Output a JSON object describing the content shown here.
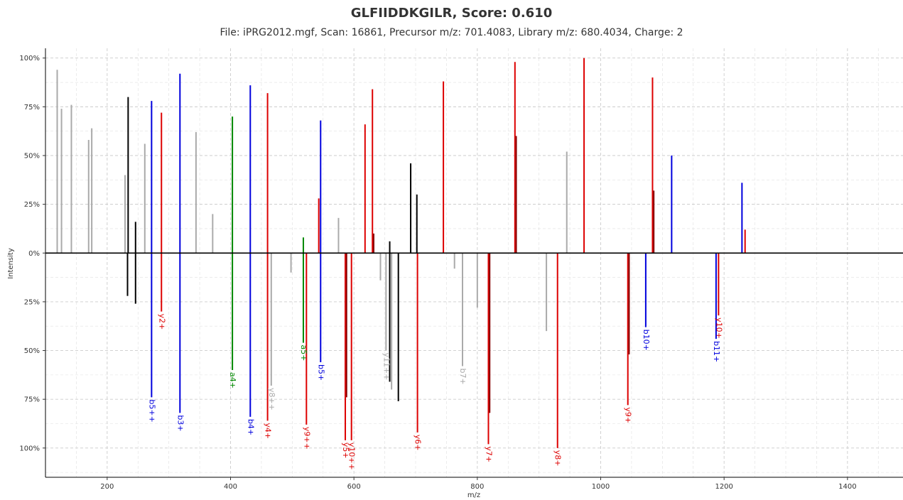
{
  "title": "GLFIIDDKGILR, Score: 0.610",
  "subtitle": "File: iPRG2012.mgf, Scan: 16861, Precursor m/z: 701.4083, Library m/z: 680.4034, Charge: 2",
  "chart_data": {
    "type": "bar",
    "xlabel": "m/z",
    "ylabel": "Intensity",
    "xlim": [
      100,
      1490
    ],
    "ylim": [
      -1.15,
      1.05
    ],
    "xticks": [
      200,
      400,
      600,
      800,
      1000,
      1200,
      1400
    ],
    "yticks": [
      {
        "value": 1.0,
        "label": "100%"
      },
      {
        "value": 0.75,
        "label": "75%"
      },
      {
        "value": 0.5,
        "label": "50%"
      },
      {
        "value": 0.25,
        "label": "25%"
      },
      {
        "value": 0.0,
        "label": "0%"
      },
      {
        "value": -0.25,
        "label": "25%"
      },
      {
        "value": -0.5,
        "label": "50%"
      },
      {
        "value": -0.75,
        "label": "75%"
      },
      {
        "value": -1.0,
        "label": "100%"
      }
    ],
    "grid": true,
    "colors": {
      "b": "#0000dd",
      "y": "#dd0000",
      "a": "#008800",
      "unassigned": "#aaaaaa",
      "black": "#000000",
      "darkred": "#880000"
    },
    "query_peaks": [
      {
        "mz": 119,
        "i": 0.94,
        "c": "unassigned"
      },
      {
        "mz": 126,
        "i": 0.74,
        "c": "unassigned"
      },
      {
        "mz": 142,
        "i": 0.76,
        "c": "unassigned"
      },
      {
        "mz": 170,
        "i": 0.58,
        "c": "unassigned"
      },
      {
        "mz": 175,
        "i": 0.64,
        "c": "unassigned"
      },
      {
        "mz": 229,
        "i": 0.4,
        "c": "unassigned"
      },
      {
        "mz": 234,
        "i": 0.8,
        "c": "black"
      },
      {
        "mz": 246,
        "i": 0.16,
        "c": "black"
      },
      {
        "mz": 261,
        "i": 0.56,
        "c": "unassigned"
      },
      {
        "mz": 272,
        "i": 0.78,
        "c": "b"
      },
      {
        "mz": 288,
        "i": 0.72,
        "c": "y"
      },
      {
        "mz": 318,
        "i": 0.92,
        "c": "b"
      },
      {
        "mz": 344,
        "i": 0.62,
        "c": "unassigned"
      },
      {
        "mz": 371,
        "i": 0.2,
        "c": "unassigned"
      },
      {
        "mz": 403,
        "i": 0.7,
        "c": "a"
      },
      {
        "mz": 432,
        "i": 0.86,
        "c": "b"
      },
      {
        "mz": 460,
        "i": 0.82,
        "c": "y"
      },
      {
        "mz": 518,
        "i": 0.08,
        "c": "a"
      },
      {
        "mz": 543,
        "i": 0.28,
        "c": "y"
      },
      {
        "mz": 546,
        "i": 0.68,
        "c": "b"
      },
      {
        "mz": 575,
        "i": 0.18,
        "c": "unassigned"
      },
      {
        "mz": 618,
        "i": 0.66,
        "c": "y"
      },
      {
        "mz": 630,
        "i": 0.84,
        "c": "y"
      },
      {
        "mz": 632,
        "i": 0.1,
        "c": "darkred"
      },
      {
        "mz": 658,
        "i": 0.06,
        "c": "black"
      },
      {
        "mz": 692,
        "i": 0.46,
        "c": "black"
      },
      {
        "mz": 702,
        "i": 0.3,
        "c": "black"
      },
      {
        "mz": 745,
        "i": 0.88,
        "c": "y"
      },
      {
        "mz": 861,
        "i": 0.98,
        "c": "y"
      },
      {
        "mz": 863,
        "i": 0.6,
        "c": "darkred"
      },
      {
        "mz": 945,
        "i": 0.52,
        "c": "unassigned"
      },
      {
        "mz": 973,
        "i": 1.0,
        "c": "y"
      },
      {
        "mz": 1084,
        "i": 0.9,
        "c": "y"
      },
      {
        "mz": 1086,
        "i": 0.32,
        "c": "darkred"
      },
      {
        "mz": 1115,
        "i": 0.5,
        "c": "b"
      },
      {
        "mz": 1229,
        "i": 0.36,
        "c": "b"
      },
      {
        "mz": 1234,
        "i": 0.12,
        "c": "y"
      }
    ],
    "library_peaks": [
      {
        "mz": 233,
        "i": 0.22,
        "c": "black"
      },
      {
        "mz": 246,
        "i": 0.26,
        "c": "black"
      },
      {
        "mz": 272,
        "i": 0.74,
        "c": "b",
        "label": "b5++"
      },
      {
        "mz": 288,
        "i": 0.3,
        "c": "y",
        "label": "y2+"
      },
      {
        "mz": 318,
        "i": 0.82,
        "c": "b",
        "label": "b3+"
      },
      {
        "mz": 403,
        "i": 0.6,
        "c": "a",
        "label": "a4+"
      },
      {
        "mz": 432,
        "i": 0.84,
        "c": "b",
        "label": "b4+"
      },
      {
        "mz": 460,
        "i": 0.86,
        "c": "y",
        "label": "y4+"
      },
      {
        "mz": 466,
        "i": 0.68,
        "c": "unassigned",
        "label": "y8++"
      },
      {
        "mz": 498,
        "i": 0.1,
        "c": "unassigned"
      },
      {
        "mz": 518,
        "i": 0.46,
        "c": "a",
        "label": "a5+"
      },
      {
        "mz": 523,
        "i": 0.88,
        "c": "y",
        "label": "y9++"
      },
      {
        "mz": 546,
        "i": 0.56,
        "c": "b",
        "label": "b5+"
      },
      {
        "mz": 586,
        "i": 0.96,
        "c": "y",
        "label": "y5+"
      },
      {
        "mz": 588,
        "i": 0.74,
        "c": "darkred"
      },
      {
        "mz": 596,
        "i": 0.96,
        "c": "y",
        "label": "y10++"
      },
      {
        "mz": 643,
        "i": 0.14,
        "c": "unassigned"
      },
      {
        "mz": 652,
        "i": 0.5,
        "c": "unassigned",
        "label": "y11++"
      },
      {
        "mz": 658,
        "i": 0.66,
        "c": "black"
      },
      {
        "mz": 661,
        "i": 0.7,
        "c": "unassigned"
      },
      {
        "mz": 672,
        "i": 0.76,
        "c": "black"
      },
      {
        "mz": 703,
        "i": 0.92,
        "c": "y",
        "label": "y6+"
      },
      {
        "mz": 763,
        "i": 0.08,
        "c": "unassigned"
      },
      {
        "mz": 776,
        "i": 0.58,
        "c": "unassigned",
        "label": "b7+"
      },
      {
        "mz": 800,
        "i": 0.28,
        "c": "unassigned"
      },
      {
        "mz": 818,
        "i": 0.98,
        "c": "y",
        "label": "y7+"
      },
      {
        "mz": 820,
        "i": 0.82,
        "c": "darkred"
      },
      {
        "mz": 912,
        "i": 0.4,
        "c": "unassigned"
      },
      {
        "mz": 930,
        "i": 1.0,
        "c": "y",
        "label": "y8+"
      },
      {
        "mz": 1044,
        "i": 0.78,
        "c": "y",
        "label": "y9+"
      },
      {
        "mz": 1046,
        "i": 0.52,
        "c": "darkred"
      },
      {
        "mz": 1073,
        "i": 0.38,
        "c": "b",
        "label": "b10+"
      },
      {
        "mz": 1187,
        "i": 0.44,
        "c": "b",
        "label": "b11+"
      },
      {
        "mz": 1191,
        "i": 0.32,
        "c": "y",
        "label": "y10+"
      }
    ]
  }
}
